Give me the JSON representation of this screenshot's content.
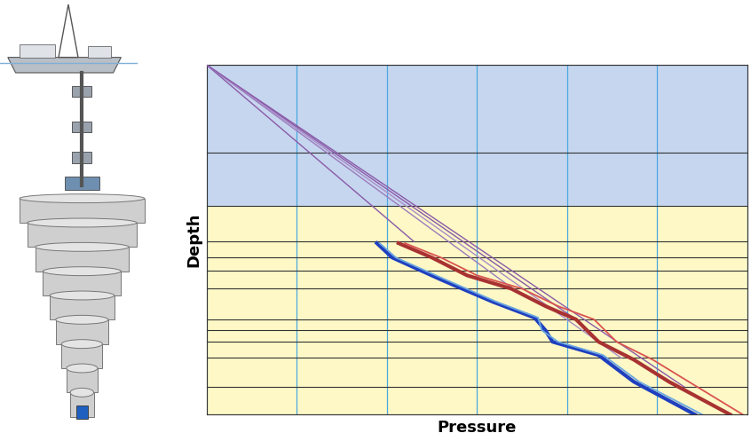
{
  "chart_data": {
    "type": "line",
    "xlabel": "Pressure",
    "ylabel": "Depth",
    "xlim": [
      0,
      6
    ],
    "xticks": [
      0,
      1,
      2,
      3,
      4,
      5,
      6
    ],
    "ylim": [
      10,
      0
    ],
    "yticks": [
      0,
      2.51,
      4.04,
      5.05,
      5.51,
      5.89,
      6.4,
      7.28,
      7.59,
      7.92,
      8.38,
      9.21,
      10
    ],
    "seabed_depth": 4.04,
    "grid": true,
    "tick_labels": false,
    "series": [
      {
        "color": "#8a5aa8",
        "x": [
          0,
          2.3
        ],
        "values": [
          0,
          5.05
        ]
      },
      {
        "color": "#9b7bbd",
        "x": [
          0,
          3.4
        ],
        "values": [
          0,
          6.4
        ]
      },
      {
        "color": "#8a5aa8",
        "x": [
          0,
          4.1
        ],
        "values": [
          0,
          7.28
        ]
      },
      {
        "color": "#a98cc8",
        "x": [
          0,
          4.6
        ],
        "values": [
          0,
          8.38
        ]
      },
      {
        "color": "#8a5aa8",
        "x": [
          0,
          5.3
        ],
        "values": [
          0,
          9.21
        ]
      },
      {
        "color": "#a83232",
        "x": [
          2.13,
          2.5,
          2.89,
          3.38,
          3.76,
          4.1,
          4.35,
          4.74,
          5.13,
          5.81
        ],
        "values": [
          5.1,
          5.51,
          6.02,
          6.4,
          6.9,
          7.28,
          7.92,
          8.43,
          9.06,
          10
        ]
      },
      {
        "color": "#d9534f",
        "x": [
          2.2,
          2.6,
          3.0,
          3.5,
          3.9,
          4.3,
          4.55,
          4.95,
          5.35,
          5.95
        ],
        "values": [
          5.1,
          5.51,
          6.02,
          6.4,
          6.9,
          7.28,
          7.92,
          8.43,
          9.06,
          10
        ]
      },
      {
        "color": "#1f3fbf",
        "x": [
          1.89,
          2.06,
          2.6,
          3.18,
          3.64,
          3.76,
          3.84,
          4.35,
          4.74,
          5.42
        ],
        "values": [
          5.1,
          5.51,
          6.14,
          6.78,
          7.23,
          7.59,
          7.92,
          8.3,
          9.06,
          10
        ]
      },
      {
        "color": "#6aa6e0",
        "x": [
          1.92,
          2.1,
          2.65,
          3.22,
          3.68,
          3.72,
          3.9,
          4.4,
          4.8,
          5.5
        ],
        "values": [
          5.1,
          5.51,
          6.14,
          6.78,
          7.23,
          7.59,
          7.92,
          8.3,
          9.06,
          10
        ]
      }
    ]
  }
}
